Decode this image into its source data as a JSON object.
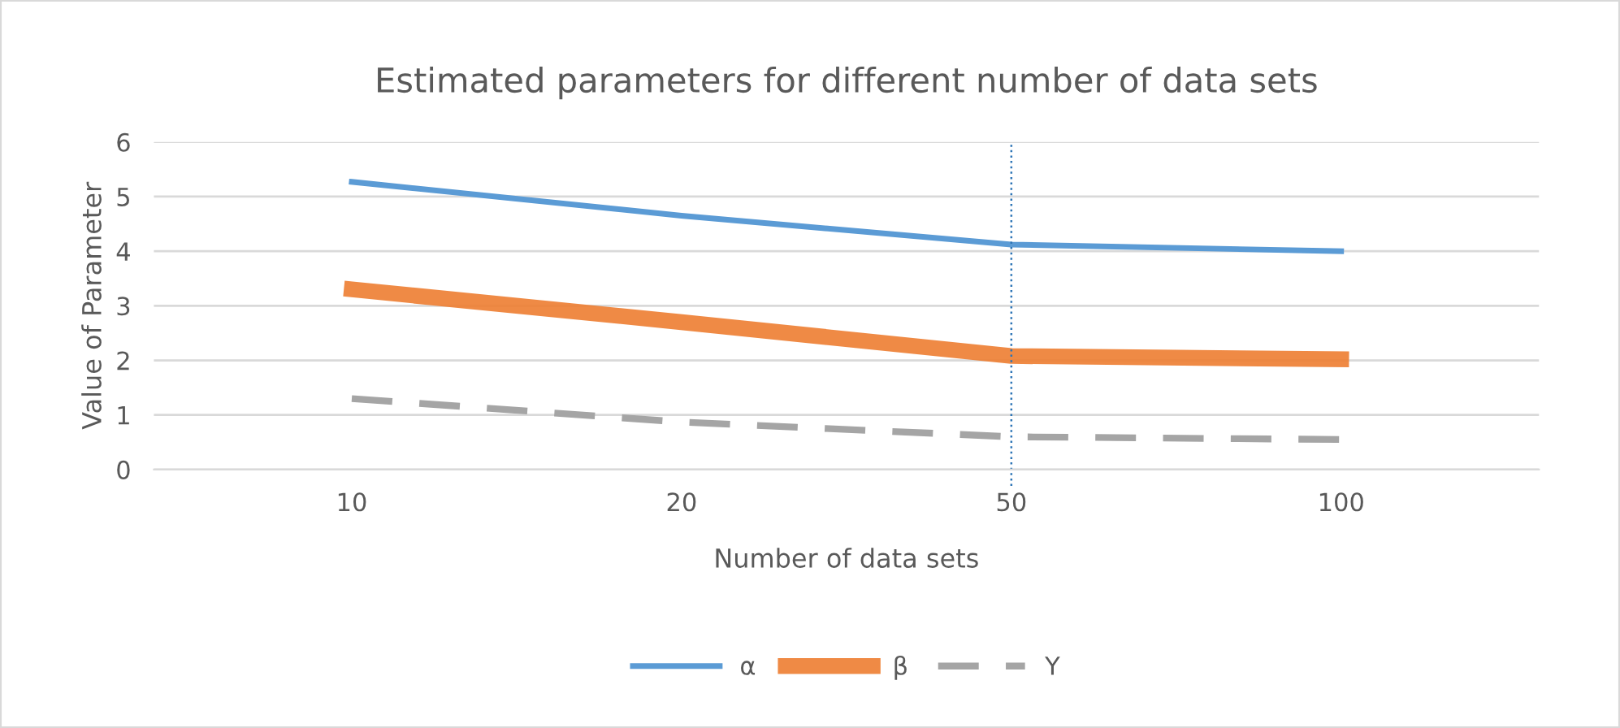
{
  "chart_data": {
    "type": "line",
    "title": "Estimated parameters for different number of data sets",
    "xlabel": "Number of data sets",
    "ylabel": "Value of Parameter",
    "categories": [
      "10",
      "20",
      "50",
      "100"
    ],
    "series": [
      {
        "name": "α",
        "color": "#5b9bd5",
        "values": [
          5.27,
          4.65,
          4.12,
          4.0
        ],
        "line_style": "solid"
      },
      {
        "name": "β",
        "color": "#ed7d31",
        "values": [
          3.3,
          2.7,
          2.08,
          2.02
        ],
        "line_style": "solid"
      },
      {
        "name": "Υ",
        "color": "#a5a5a5",
        "values": [
          1.3,
          0.87,
          0.6,
          0.55
        ],
        "line_style": "dashed"
      }
    ],
    "ylim": [
      0,
      6
    ],
    "yticks": [
      0,
      1,
      2,
      3,
      4,
      5,
      6
    ],
    "grid": "y",
    "legend": "bottom",
    "ref_lines": [
      {
        "axis": "x",
        "value": "50",
        "color": "#2e75b6",
        "line_style": "dotted"
      }
    ]
  }
}
